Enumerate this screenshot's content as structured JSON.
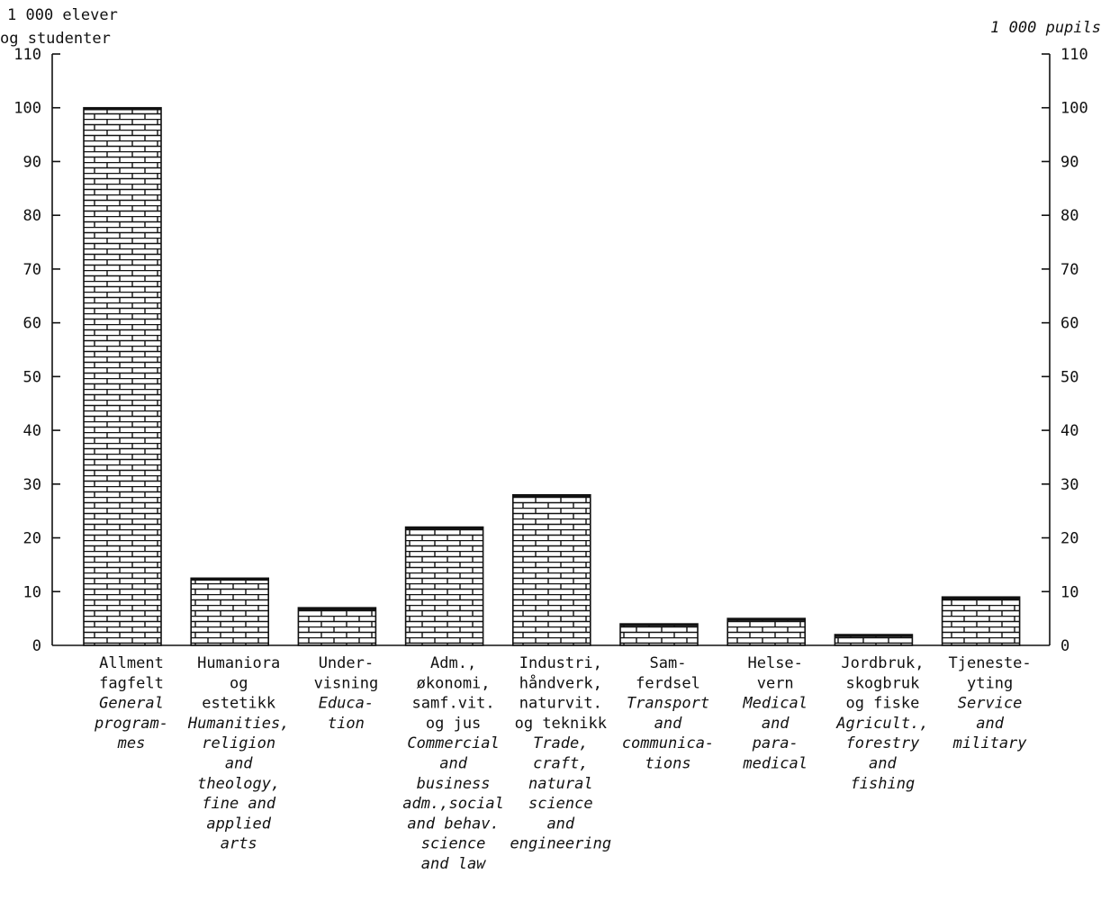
{
  "chart_data": {
    "type": "bar",
    "ylabel_left": [
      "1 000 elever",
      "og studenter"
    ],
    "ylabel_right": "1 000 pupils",
    "ylim": [
      0,
      110
    ],
    "yticks": [
      "0",
      "10",
      "20",
      "30",
      "40",
      "50",
      "60",
      "70",
      "80",
      "90",
      "100",
      "110"
    ],
    "grid": false,
    "bar_pattern": "brick hatch",
    "categories": [
      {
        "no": [
          "Allment",
          "fagfelt"
        ],
        "en": [
          "General",
          "program-",
          "mes"
        ]
      },
      {
        "no": [
          "Humaniora",
          "og",
          "estetikk"
        ],
        "en": [
          "Humanities,",
          "religion",
          "and",
          "theology,",
          "fine and",
          "applied",
          "arts"
        ]
      },
      {
        "no": [
          "Under-",
          "visning"
        ],
        "en": [
          "Educa-",
          "tion"
        ]
      },
      {
        "no": [
          "Adm.,",
          "økonomi,",
          "samf.vit.",
          "og jus"
        ],
        "en": [
          "Commercial",
          "and",
          "business",
          "adm.,social",
          "and behav.",
          "science",
          "and law"
        ]
      },
      {
        "no": [
          "Industri,",
          "håndverk,",
          "naturvit.",
          "og teknikk"
        ],
        "en": [
          "Trade,",
          "craft,",
          "natural",
          "science",
          "and",
          "engineering"
        ]
      },
      {
        "no": [
          "Sam-",
          "ferdsel"
        ],
        "en": [
          "Transport",
          "and",
          "communica-",
          "tions"
        ]
      },
      {
        "no": [
          "Helse-",
          "vern"
        ],
        "en": [
          "Medical",
          "and",
          "para-",
          "medical"
        ]
      },
      {
        "no": [
          "Jordbruk,",
          "skogbruk",
          "og fiske"
        ],
        "en": [
          "Agricult.,",
          "forestry",
          "and",
          "fishing"
        ]
      },
      {
        "no": [
          "Tjeneste-",
          "yting"
        ],
        "en": [
          "Service",
          "and",
          "military"
        ]
      }
    ],
    "values": [
      100,
      12.5,
      7,
      22,
      28,
      4,
      5,
      2,
      9
    ]
  }
}
